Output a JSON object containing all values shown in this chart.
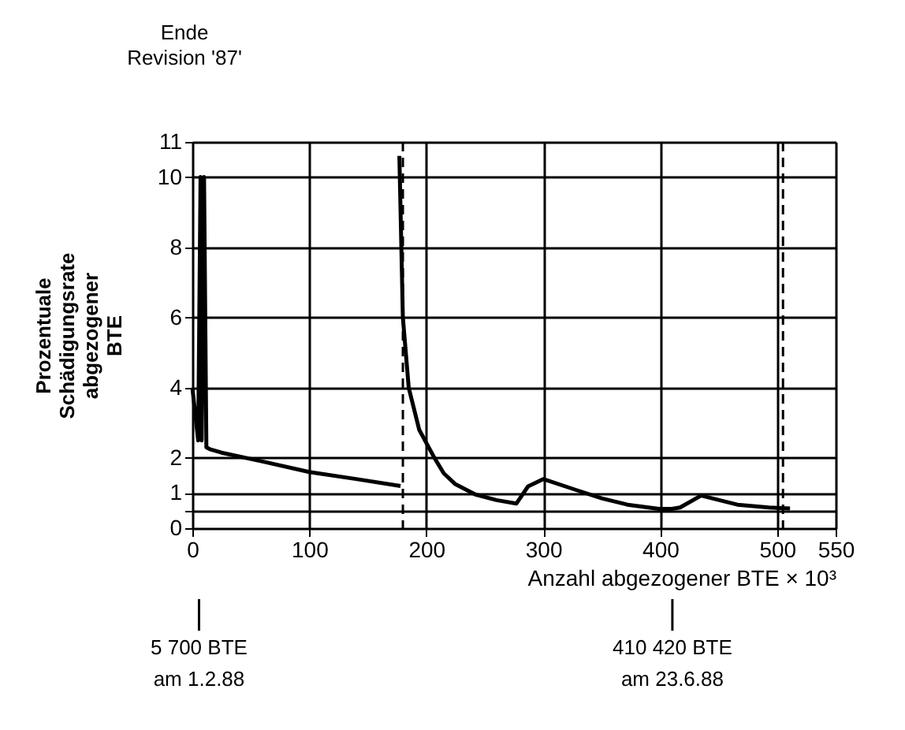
{
  "chart_data": {
    "type": "line",
    "xlabel": "Anzahl abgezogener BTE × 10³",
    "ylabel": "Prozentuale\nSchädigungsrate\nabgezogener\nBTE",
    "series": [
      {
        "color": "#000000",
        "x": [
          0,
          5,
          7,
          8,
          10,
          12,
          15,
          25,
          60,
          100,
          140,
          178
        ],
        "values": [
          4.0,
          2.5,
          10.0,
          2.5,
          10.0,
          2.3,
          2.25,
          2.15,
          1.9,
          1.6,
          1.4,
          1.2
        ]
      },
      {
        "color": "#000000",
        "x": [
          177,
          180,
          185,
          194,
          207,
          215,
          225,
          242,
          260,
          277,
          287,
          300,
          327,
          350,
          372,
          399,
          410,
          417,
          435,
          466,
          493,
          511
        ],
        "values": [
          10.6,
          6.0,
          4.0,
          2.8,
          2.0,
          1.56,
          1.25,
          0.96,
          0.8,
          0.7,
          1.19,
          1.4,
          1.1,
          0.85,
          0.67,
          0.55,
          0.55,
          0.59,
          0.93,
          0.67,
          0.59,
          0.56
        ]
      }
    ],
    "xlim": [
      0,
      550
    ],
    "xticks": [
      0,
      100,
      200,
      300,
      400,
      500,
      550
    ],
    "ylim": [
      0,
      11
    ],
    "yticks": [
      0,
      {
        "value": 0.5,
        "label": null
      },
      1,
      2,
      4,
      6,
      8,
      10,
      11
    ],
    "grid": true,
    "ref_lines": [
      {
        "axis": "x",
        "value": 180,
        "line_style": "dashed",
        "color": "#000000"
      },
      {
        "axis": "x",
        "value": 505,
        "line_style": "dashed",
        "color": "#000000"
      }
    ],
    "annotations": [
      "Ende\nRevision '87'",
      {
        "text": "5 700 BTE\nam 1.2.88",
        "x": 5.7
      },
      {
        "text": "410 420 BTE\nam 23.6.88",
        "x": 410.42
      }
    ]
  }
}
